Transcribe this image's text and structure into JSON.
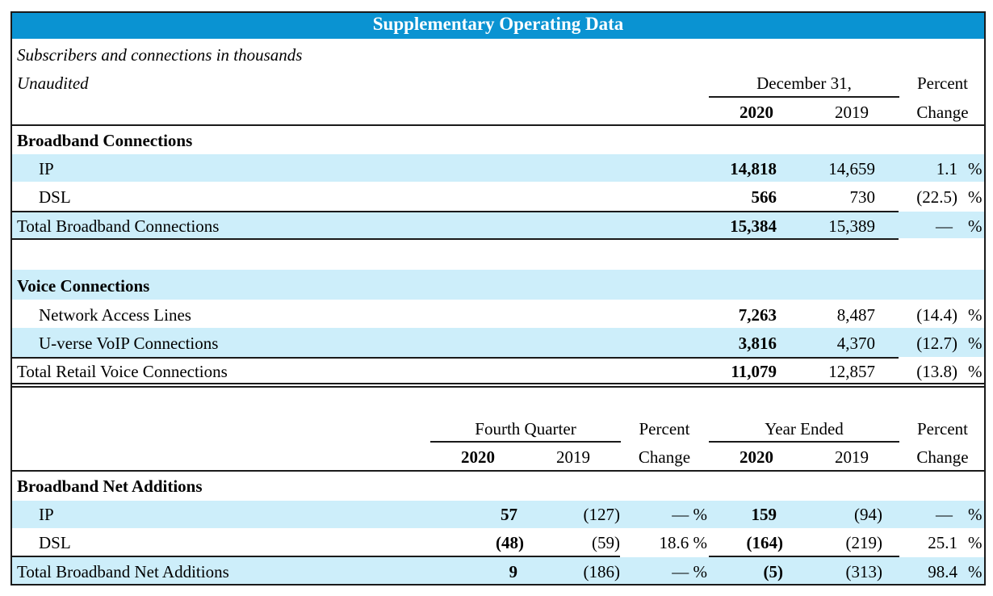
{
  "title": "Supplementary Operating Data",
  "note_line1": "Subscribers and connections in thousands",
  "note_line2": "Unaudited",
  "section1": {
    "period_header": "December 31,",
    "pct_header_1": "Percent",
    "pct_header_2": "Change",
    "year_current": "2020",
    "year_prior": "2019",
    "broadband": {
      "heading": "Broadband Connections",
      "rows": [
        {
          "label": "IP",
          "current": "14,818",
          "prior": "14,659",
          "change": "1.1",
          "pct": "%"
        },
        {
          "label": "DSL",
          "current": "566",
          "prior": "730",
          "change": "(22.5)",
          "pct": "%"
        }
      ],
      "total": {
        "label": "Total Broadband Connections",
        "current": "15,384",
        "prior": "15,389",
        "change": "—",
        "pct": "%"
      }
    },
    "voice": {
      "heading": "Voice Connections",
      "rows": [
        {
          "label": "Network Access Lines",
          "current": "7,263",
          "prior": "8,487",
          "change": "(14.4)",
          "pct": "%"
        },
        {
          "label": "U-verse VoIP Connections",
          "current": "3,816",
          "prior": "4,370",
          "change": "(12.7)",
          "pct": "%"
        }
      ],
      "total": {
        "label": "Total Retail Voice Connections",
        "current": "11,079",
        "prior": "12,857",
        "change": "(13.8)",
        "pct": "%"
      }
    }
  },
  "section2": {
    "q_header": "Fourth Quarter",
    "y_header": "Year Ended",
    "pct_header_1": "Percent",
    "pct_header_2": "Change",
    "year_current": "2020",
    "year_prior": "2019",
    "heading": "Broadband Net Additions",
    "rows": [
      {
        "label": "IP",
        "q_current": "57",
        "q_prior": "(127)",
        "q_change": "— %",
        "y_current": "159",
        "y_prior": "(94)",
        "y_change": "—",
        "y_pct": "%"
      },
      {
        "label": "DSL",
        "q_current": "(48)",
        "q_prior": "(59)",
        "q_change": "18.6 %",
        "y_current": "(164)",
        "y_prior": "(219)",
        "y_change": "25.1",
        "y_pct": "%"
      }
    ],
    "total": {
      "label": "Total Broadband Net Additions",
      "q_current": "9",
      "q_prior": "(186)",
      "q_change": "— %",
      "y_current": "(5)",
      "y_prior": "(313)",
      "y_change": "98.4",
      "y_pct": "%"
    }
  }
}
